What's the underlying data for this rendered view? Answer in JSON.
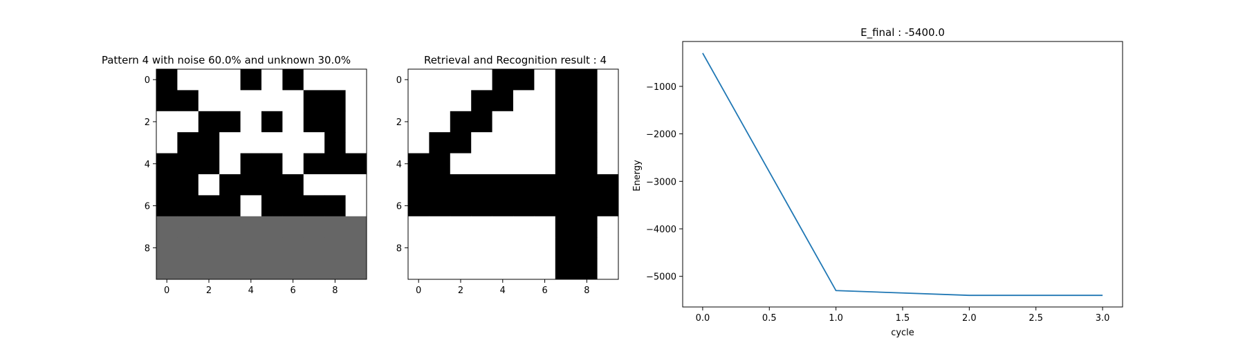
{
  "chart_data": [
    {
      "type": "heatmap",
      "title": "Pattern 4 with noise 60.0% and unknown 30.0%",
      "colormap": {
        "1": "#000000",
        "0": "#ffffff",
        "-1": "#666666"
      },
      "grid": [
        [
          1,
          0,
          0,
          0,
          1,
          0,
          1,
          0,
          0,
          0
        ],
        [
          1,
          1,
          0,
          0,
          0,
          0,
          0,
          1,
          1,
          0
        ],
        [
          0,
          0,
          1,
          1,
          0,
          1,
          0,
          1,
          1,
          0
        ],
        [
          0,
          1,
          1,
          0,
          0,
          0,
          0,
          0,
          1,
          0
        ],
        [
          1,
          1,
          1,
          0,
          1,
          1,
          0,
          1,
          1,
          1
        ],
        [
          1,
          1,
          0,
          1,
          1,
          1,
          1,
          0,
          0,
          0
        ],
        [
          1,
          1,
          1,
          1,
          0,
          1,
          1,
          1,
          1,
          0
        ],
        [
          -1,
          -1,
          -1,
          -1,
          -1,
          -1,
          -1,
          -1,
          -1,
          -1
        ],
        [
          -1,
          -1,
          -1,
          -1,
          -1,
          -1,
          -1,
          -1,
          -1,
          -1
        ],
        [
          -1,
          -1,
          -1,
          -1,
          -1,
          -1,
          -1,
          -1,
          -1,
          -1
        ]
      ],
      "xticks": [
        0,
        2,
        4,
        6,
        8
      ],
      "yticks": [
        0,
        2,
        4,
        6,
        8
      ]
    },
    {
      "type": "heatmap",
      "title": "Retrieval and Recognition result : 4",
      "colormap": {
        "1": "#000000",
        "0": "#ffffff"
      },
      "grid": [
        [
          0,
          0,
          0,
          0,
          1,
          1,
          0,
          1,
          1,
          0
        ],
        [
          0,
          0,
          0,
          1,
          1,
          0,
          0,
          1,
          1,
          0
        ],
        [
          0,
          0,
          1,
          1,
          0,
          0,
          0,
          1,
          1,
          0
        ],
        [
          0,
          1,
          1,
          0,
          0,
          0,
          0,
          1,
          1,
          0
        ],
        [
          1,
          1,
          0,
          0,
          0,
          0,
          0,
          1,
          1,
          0
        ],
        [
          1,
          1,
          1,
          1,
          1,
          1,
          1,
          1,
          1,
          1
        ],
        [
          1,
          1,
          1,
          1,
          1,
          1,
          1,
          1,
          1,
          1
        ],
        [
          0,
          0,
          0,
          0,
          0,
          0,
          0,
          1,
          1,
          0
        ],
        [
          0,
          0,
          0,
          0,
          0,
          0,
          0,
          1,
          1,
          0
        ],
        [
          0,
          0,
          0,
          0,
          0,
          0,
          0,
          1,
          1,
          0
        ]
      ],
      "xticks": [
        0,
        2,
        4,
        6,
        8
      ],
      "yticks": [
        0,
        2,
        4,
        6,
        8
      ]
    },
    {
      "type": "line",
      "title": "E_final : -5400.0",
      "xlabel": "cycle",
      "ylabel": "Energy",
      "series": [
        {
          "x": [
            0.0,
            1.0,
            2.0,
            3.0
          ],
          "values": [
            -300,
            -5300,
            -5400,
            -5400
          ],
          "color": "#1f77b4"
        }
      ],
      "xlim": [
        -0.15,
        3.15
      ],
      "ylim": [
        -5645,
        -55
      ],
      "xticks": [
        0.0,
        0.5,
        1.0,
        1.5,
        2.0,
        2.5,
        3.0
      ],
      "xticklabels": [
        "0.0",
        "0.5",
        "1.0",
        "1.5",
        "2.0",
        "2.5",
        "3.0"
      ],
      "yticks": [
        -1000,
        -2000,
        -3000,
        -4000,
        -5000
      ],
      "yticklabels": [
        "−1000",
        "−2000",
        "−3000",
        "−4000",
        "−5000"
      ],
      "grid": false,
      "legend": null
    }
  ]
}
